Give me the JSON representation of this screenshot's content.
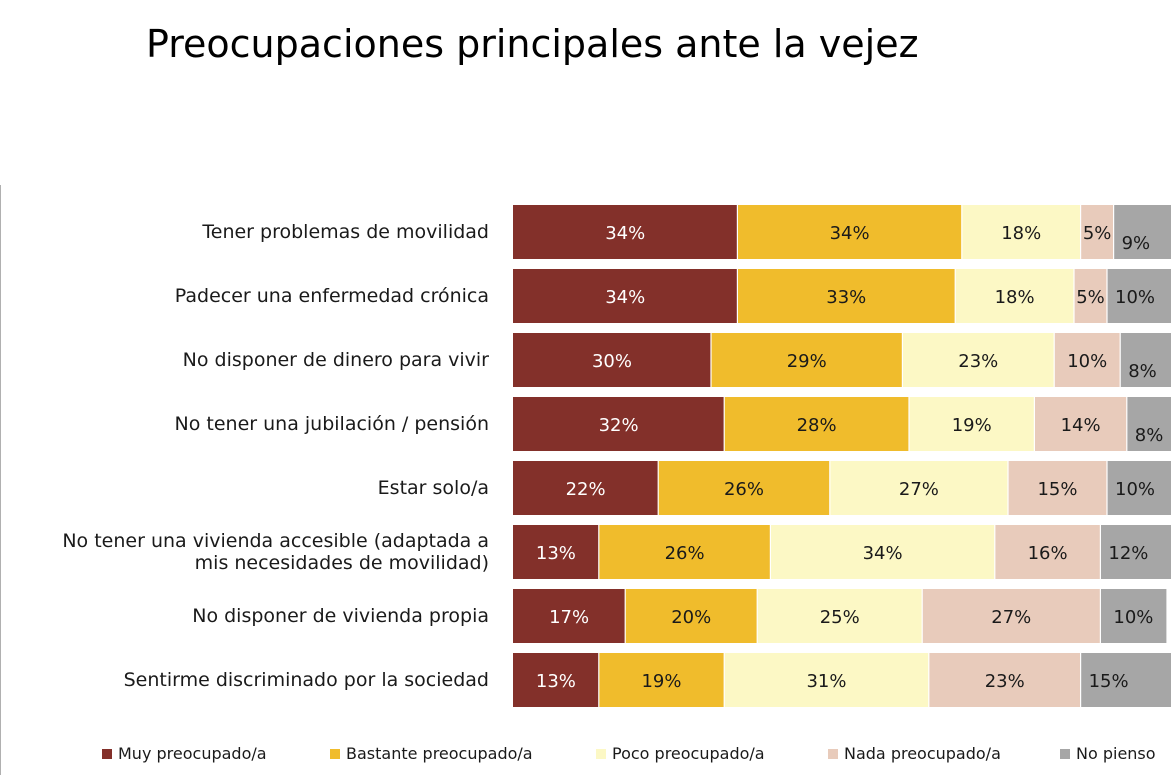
{
  "title": "Preocupaciones principales ante la vejez",
  "colors": {
    "Muy preocupado/a": "#83302a",
    "Bastante preocupado/a": "#f0bc2c",
    "Poco preocupado/a": "#fcf8c5",
    "Nada preocupado/a": "#e8cbbb",
    "No pienso": "#a6a6a6"
  },
  "chart_data": {
    "type": "bar",
    "orientation": "horizontal",
    "stacked": true,
    "title": "Preocupaciones principales ante la vejez",
    "categories": [
      "Tener problemas de movilidad",
      "Padecer una enfermedad crónica",
      "No disponer de dinero para vivir",
      "No tener una jubilación / pensión",
      "Estar solo/a",
      "No tener una vivienda accesible (adaptada a mis necesidades de movilidad)",
      "No disponer de vivienda propia",
      "Sentirme discriminado por la sociedad"
    ],
    "category_lines": [
      [
        "Tener problemas de movilidad"
      ],
      [
        "Padecer una enfermedad crónica"
      ],
      [
        "No disponer de dinero para vivir"
      ],
      [
        "No tener una jubilación / pensión"
      ],
      [
        "Estar solo/a"
      ],
      [
        "No tener una vivienda accesible (adaptada a",
        "mis necesidades de movilidad)"
      ],
      [
        "No disponer de vivienda propia"
      ],
      [
        "Sentirme discriminado por la sociedad"
      ]
    ],
    "series": [
      {
        "name": "Muy preocupado/a",
        "values": [
          34,
          34,
          30,
          32,
          22,
          13,
          17,
          13
        ],
        "labels": [
          "34%",
          "34%",
          "30%",
          "32%",
          "22%",
          "13%",
          "17%",
          "13%"
        ]
      },
      {
        "name": "Bastante preocupado/a",
        "values": [
          34,
          33,
          29,
          28,
          26,
          26,
          20,
          19
        ],
        "labels": [
          "34%",
          "33%",
          "29%",
          "28%",
          "26%",
          "26%",
          "20%",
          "19%"
        ]
      },
      {
        "name": "Poco preocupado/a",
        "values": [
          18,
          18,
          23,
          19,
          27,
          34,
          25,
          31
        ],
        "labels": [
          "18%",
          "18%",
          "23%",
          "19%",
          "27%",
          "34%",
          "25%",
          "31%"
        ]
      },
      {
        "name": "Nada preocupado/a",
        "values": [
          5,
          5,
          10,
          14,
          15,
          16,
          27,
          23
        ],
        "labels": [
          "5%",
          "5%",
          "10%",
          "14%",
          "15%",
          "16%",
          "27%",
          "23%"
        ]
      },
      {
        "name": "No pienso",
        "values": [
          9,
          10,
          8,
          8,
          10,
          12,
          10,
          15
        ],
        "labels": [
          "9%",
          "10%",
          "8%",
          "8%",
          "10%",
          "12%",
          "10%",
          "15%"
        ]
      }
    ],
    "xlim": [
      0,
      100
    ],
    "unit": "%",
    "grid": false,
    "legend_position": "bottom"
  }
}
